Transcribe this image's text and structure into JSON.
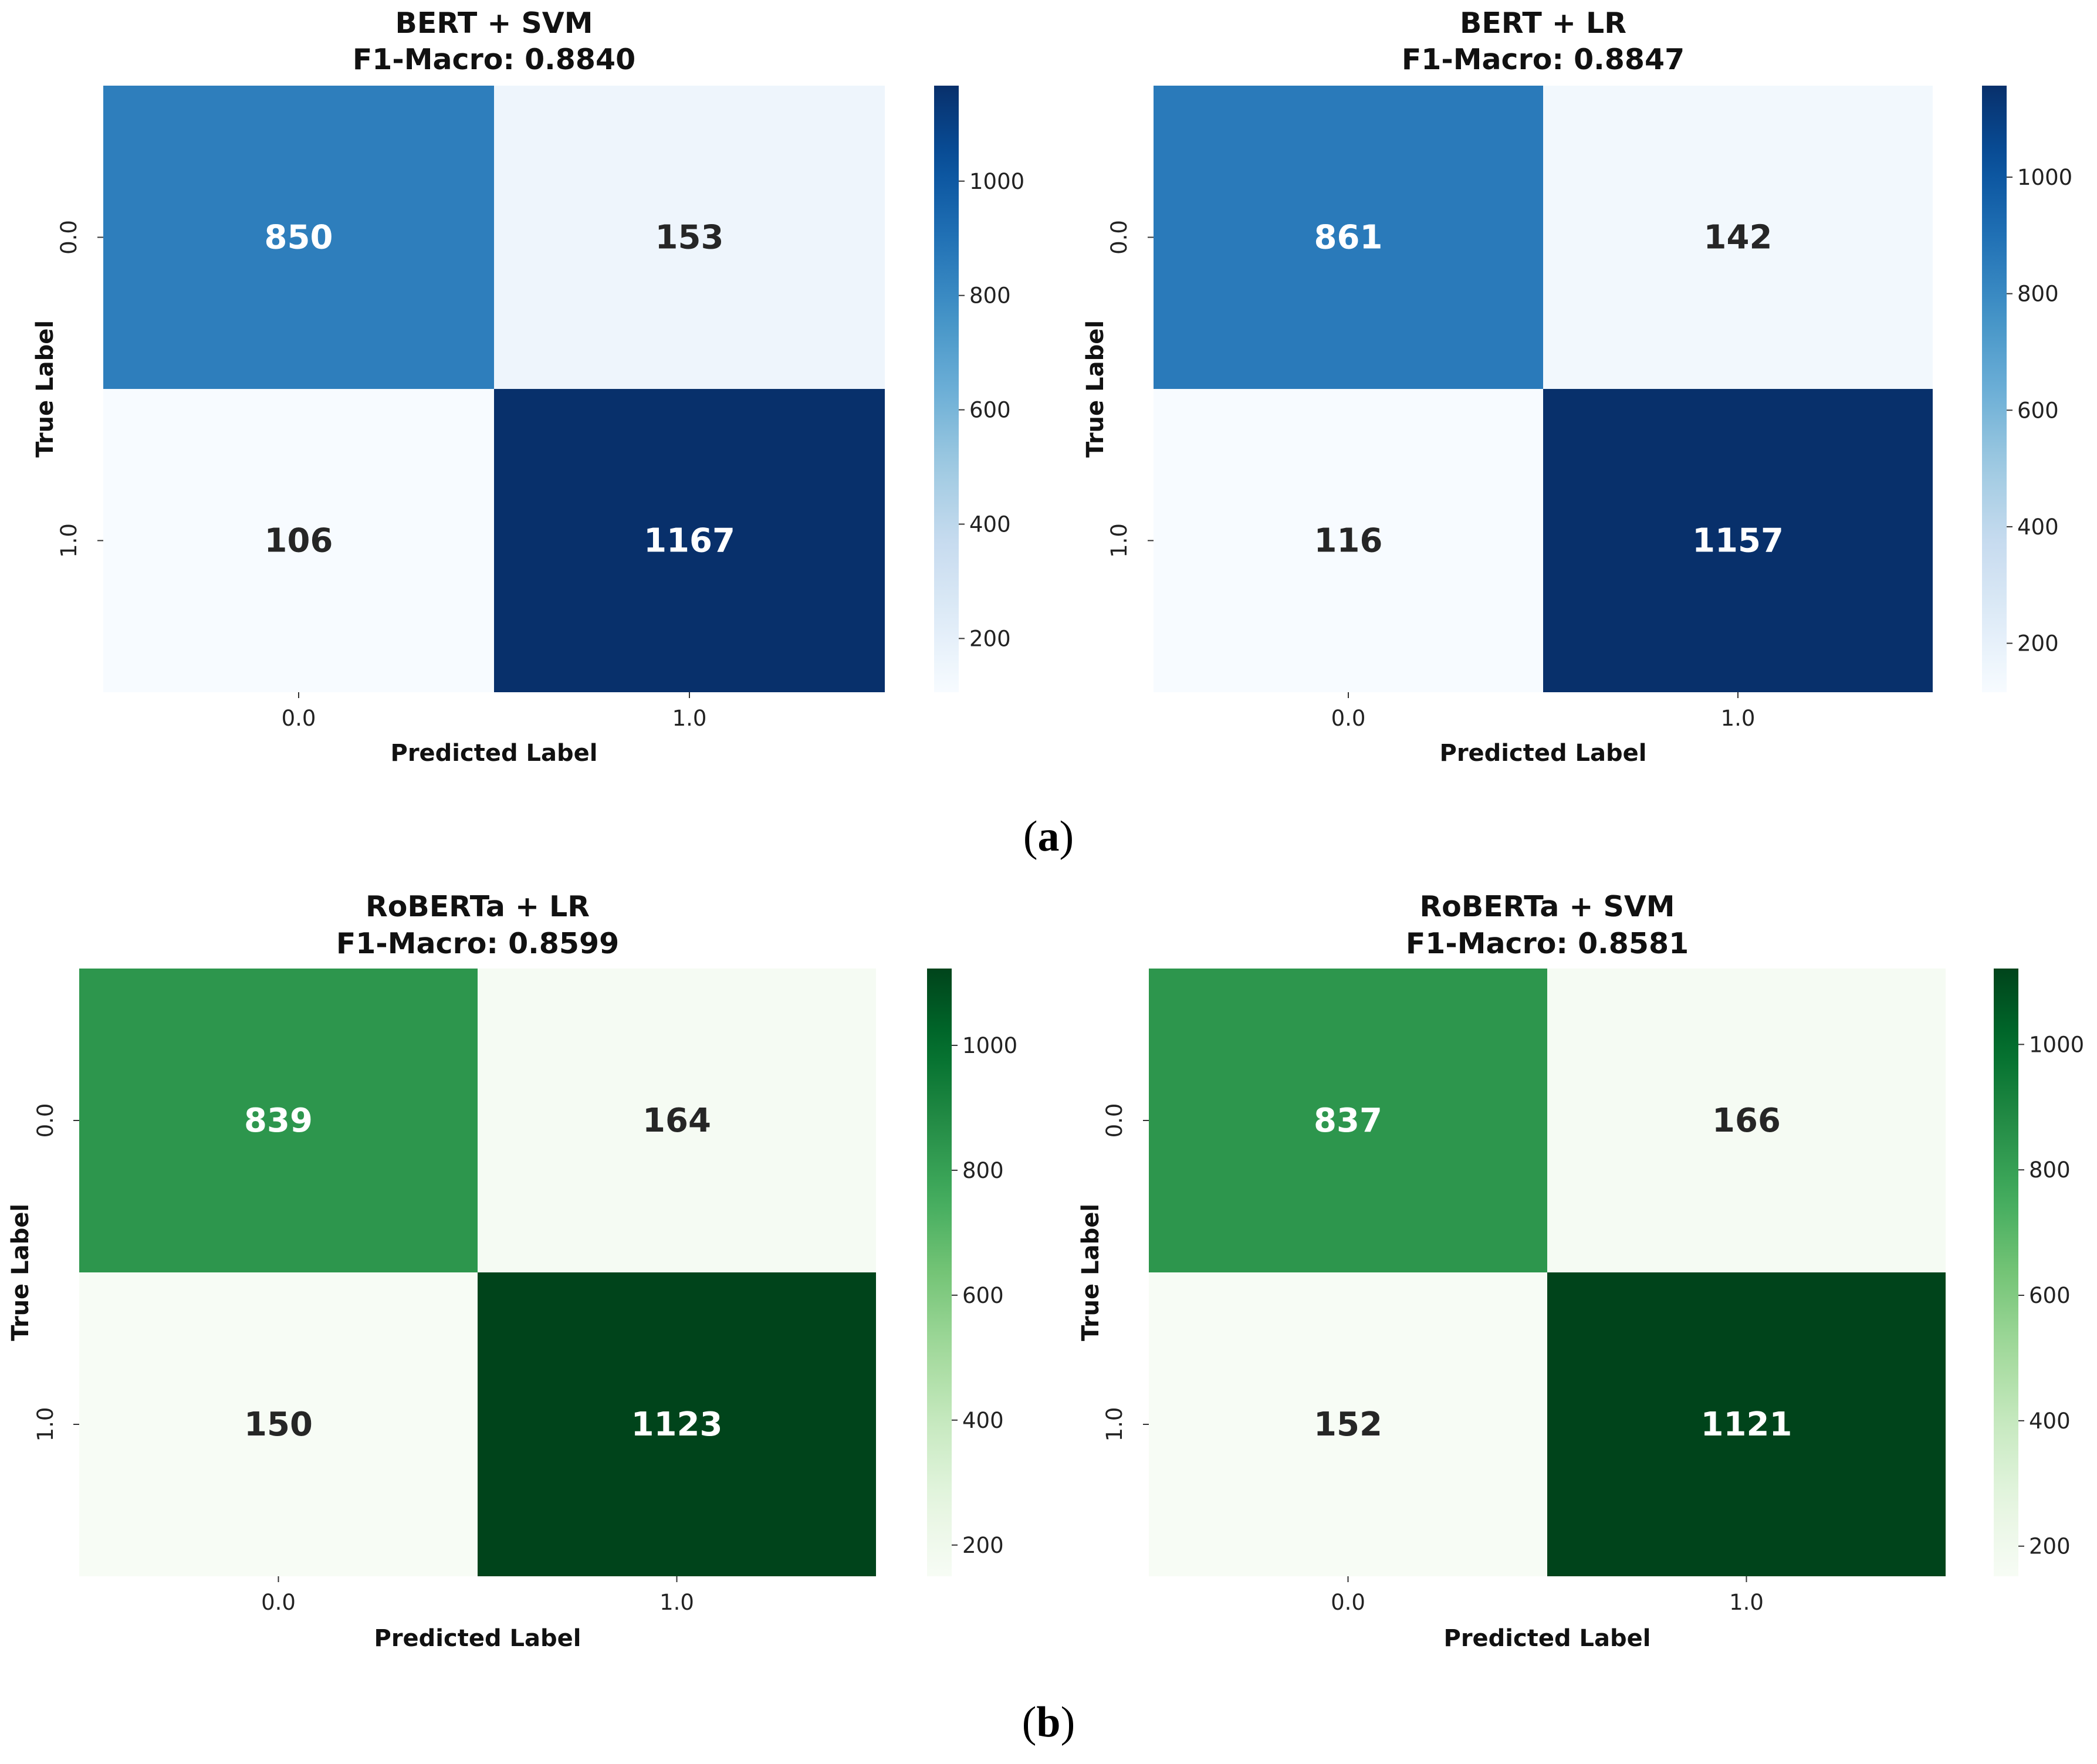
{
  "figure_captions": [
    {
      "open": "(",
      "letter": "a",
      "close": ")"
    },
    {
      "open": "(",
      "letter": "b",
      "close": ")"
    }
  ],
  "chart_data": [
    {
      "type": "heatmap",
      "title": "BERT + SVM",
      "subtitle": "F1-Macro: 0.8840",
      "xlabel": "Predicted Label",
      "ylabel": "True Label",
      "x_ticks": [
        "0.0",
        "1.0"
      ],
      "y_ticks": [
        "0.0",
        "1.0"
      ],
      "matrix": [
        [
          850,
          153
        ],
        [
          106,
          1167
        ]
      ],
      "colormap": "Blues",
      "vmin": 106,
      "vmax": 1167,
      "colorbar_ticks": [
        200,
        400,
        600,
        800,
        1000
      ]
    },
    {
      "type": "heatmap",
      "title": "BERT + LR",
      "subtitle": "F1-Macro: 0.8847",
      "xlabel": "Predicted Label",
      "ylabel": "True Label",
      "x_ticks": [
        "0.0",
        "1.0"
      ],
      "y_ticks": [
        "0.0",
        "1.0"
      ],
      "matrix": [
        [
          861,
          142
        ],
        [
          116,
          1157
        ]
      ],
      "colormap": "Blues",
      "vmin": 116,
      "vmax": 1157,
      "colorbar_ticks": [
        200,
        400,
        600,
        800,
        1000
      ]
    },
    {
      "type": "heatmap",
      "title": "RoBERTa + LR",
      "subtitle": "F1-Macro: 0.8599",
      "xlabel": "Predicted Label",
      "ylabel": "True Label",
      "x_ticks": [
        "0.0",
        "1.0"
      ],
      "y_ticks": [
        "0.0",
        "1.0"
      ],
      "matrix": [
        [
          839,
          164
        ],
        [
          150,
          1123
        ]
      ],
      "colormap": "Greens",
      "vmin": 150,
      "vmax": 1123,
      "colorbar_ticks": [
        200,
        400,
        600,
        800,
        1000
      ]
    },
    {
      "type": "heatmap",
      "title": "RoBERTa + SVM",
      "subtitle": "F1-Macro: 0.8581",
      "xlabel": "Predicted Label",
      "ylabel": "True Label",
      "x_ticks": [
        "0.0",
        "1.0"
      ],
      "y_ticks": [
        "0.0",
        "1.0"
      ],
      "matrix": [
        [
          837,
          166
        ],
        [
          152,
          1121
        ]
      ],
      "colormap": "Greens",
      "vmin": 152,
      "vmax": 1121,
      "colorbar_ticks": [
        200,
        400,
        600,
        800,
        1000
      ]
    }
  ]
}
